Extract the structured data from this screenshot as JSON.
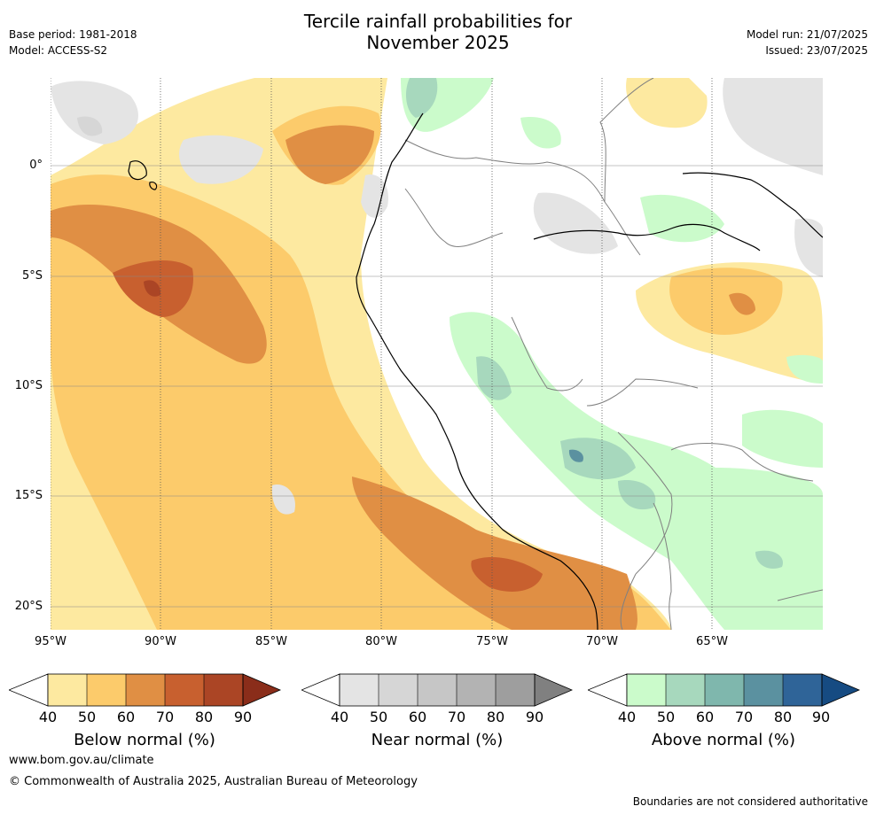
{
  "header": {
    "title_line1": "Tercile rainfall probabilities for",
    "title_line2": "November 2025",
    "base_period": "Base period: 1981-2018",
    "model": "Model: ACCESS-S2",
    "model_run": "Model run: 21/07/2025",
    "issued": "Issued: 23/07/2025"
  },
  "map": {
    "lat_labels": [
      "0°",
      "5°S",
      "10°S",
      "15°S",
      "20°S"
    ],
    "lon_labels": [
      "95°W",
      "90°W",
      "85°W",
      "80°W",
      "75°W",
      "70°W",
      "65°W"
    ],
    "colors": {
      "below": [
        "#fde9a0",
        "#fccb6b",
        "#e08f44",
        "#c8602f",
        "#ab4525",
        "#8a2d1a"
      ],
      "near": [
        "#e4e4e4",
        "#d6d6d6",
        "#c6c6c6",
        "#b3b3b3",
        "#9e9e9e",
        "#808080"
      ],
      "above": [
        "#cbfbcb",
        "#a7d8bd",
        "#7fb7ad",
        "#5b91a0",
        "#2f6498",
        "#164b82"
      ],
      "land_boundary": "#808080",
      "coastline": "#000000",
      "gridline": "#888888"
    }
  },
  "legend": {
    "tick_values": [
      "40",
      "50",
      "60",
      "70",
      "80",
      "90"
    ],
    "below_title": "Below normal (%)",
    "near_title": "Near normal (%)",
    "above_title": "Above normal (%)"
  },
  "footer": {
    "website": "www.bom.gov.au/climate",
    "copyright": "© Commonwealth of Australia 2025, Australian Bureau of Meteorology",
    "disclaimer": "Boundaries are not considered authoritative"
  }
}
